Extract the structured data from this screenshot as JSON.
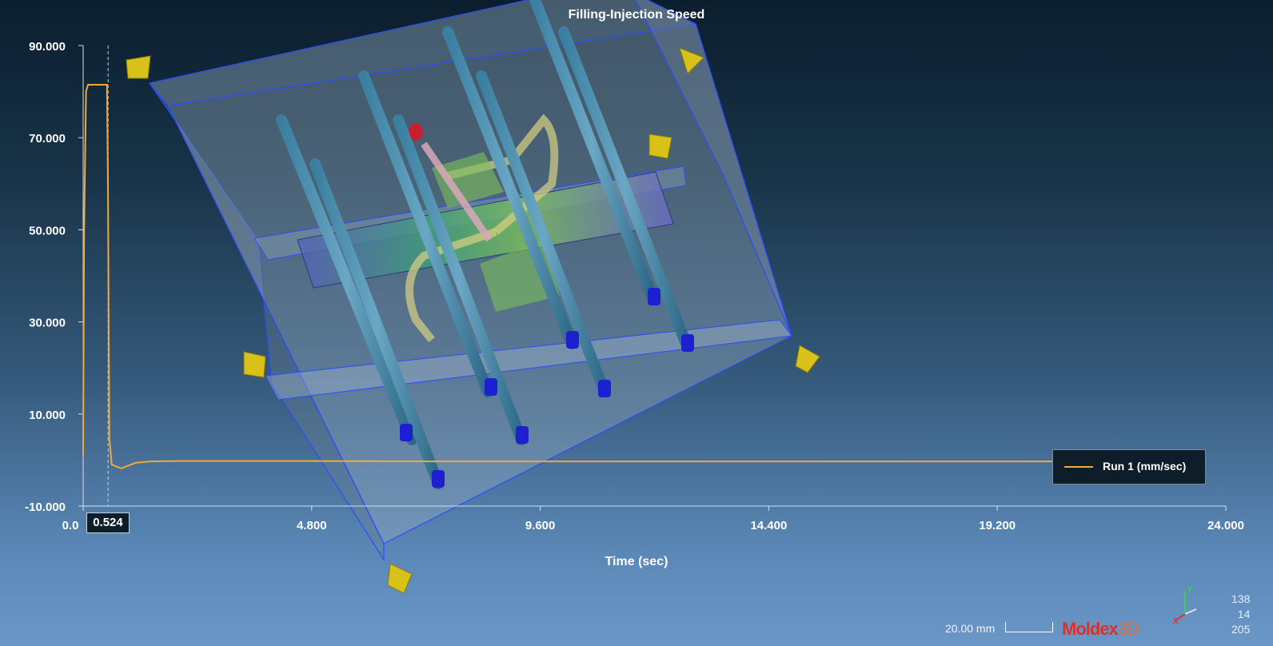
{
  "chart_data": {
    "type": "line",
    "title": "Filling-Injection Speed",
    "xlabel": "Time (sec)",
    "ylabel": "",
    "xlim": [
      0,
      24
    ],
    "ylim": [
      -10,
      90
    ],
    "x_ticks": [
      "0.0",
      "4.800",
      "9.600",
      "14.400",
      "19.200",
      "24.000"
    ],
    "y_ticks": [
      "90.000",
      "70.000",
      "50.000",
      "30.000",
      "10.000",
      "-10.000"
    ],
    "cursor": {
      "x": 0.524,
      "label": "0.524"
    },
    "legend": "bottom-right",
    "series": [
      {
        "name": "Run 1 (mm/sec)",
        "color": "#f5a83a",
        "x": [
          0,
          0.02,
          0.06,
          0.1,
          0.5,
          0.52,
          0.55,
          0.6,
          0.8,
          0.95,
          1.1,
          1.4,
          2.0,
          4.0,
          8.0,
          12.0,
          16.0,
          20.0,
          21.2
        ],
        "y": [
          1,
          50,
          80,
          81.5,
          81.5,
          60,
          5,
          -1,
          -1.8,
          -1.2,
          -0.6,
          -0.3,
          -0.2,
          -0.2,
          -0.3,
          -0.3,
          -0.3,
          -0.3,
          -0.3
        ]
      }
    ]
  },
  "scale_bar": {
    "label": "20.00 mm"
  },
  "brand": {
    "name": "Moldex",
    "suffix": "3D"
  },
  "axis_triad": {
    "y": "Y",
    "x": "X"
  },
  "coordinates": [
    "138",
    "14",
    "205"
  ]
}
